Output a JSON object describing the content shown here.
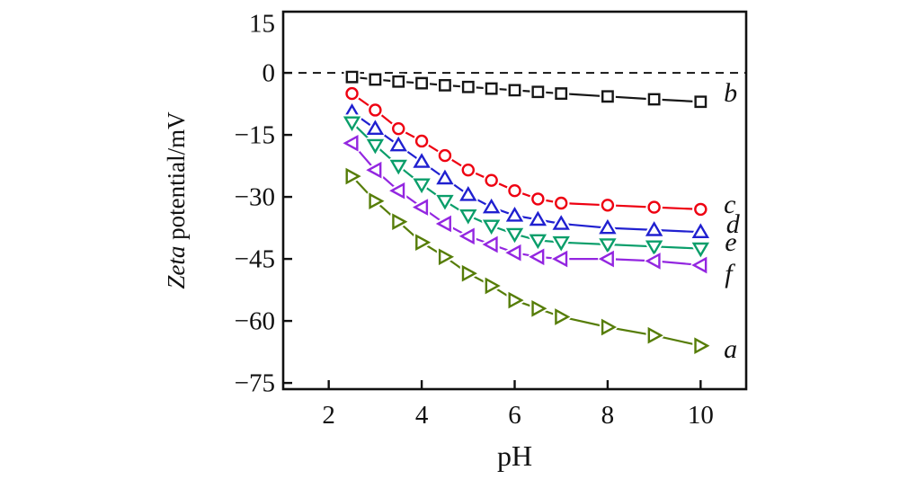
{
  "chart_data": {
    "type": "line",
    "title": "",
    "xlabel": "pH",
    "ylabel": "Zeta potential/mV",
    "ylabel_italic_part": "Zeta",
    "ylabel_regular_part": " potential/mV",
    "xlim": [
      1.02,
      10.98
    ],
    "ylim": [
      -76.5,
      14.8
    ],
    "grid": false,
    "legend_position": "inline-right-labels",
    "axis_color": "#111111",
    "text_color": "#111111",
    "zero_line": {
      "value": 0,
      "style": "dashed",
      "color": "#111111"
    },
    "x_ticks": [
      2,
      4,
      6,
      8,
      10
    ],
    "y_ticks": [
      15,
      0,
      -15,
      -30,
      -45,
      -60,
      -75
    ],
    "x": [
      2.5,
      3,
      3.5,
      4,
      4.5,
      5,
      5.5,
      6,
      6.5,
      7,
      8,
      9,
      10
    ],
    "series": [
      {
        "name": "a",
        "marker": "triangle-right",
        "color": "#567d08",
        "label_x": 10.5,
        "label_y": -66.7,
        "values": [
          -25,
          -31,
          -36,
          -41,
          -44.5,
          -48.5,
          -51.5,
          -55,
          -57,
          -59,
          -61.5,
          -63.5,
          -66
        ]
      },
      {
        "name": "b",
        "marker": "square",
        "color": "#161616",
        "label_x": 10.5,
        "label_y": -4.8,
        "values": [
          -1,
          -1.6,
          -2.1,
          -2.5,
          -3,
          -3.4,
          -3.8,
          -4.2,
          -4.6,
          -5,
          -5.7,
          -6.4,
          -7
        ]
      },
      {
        "name": "c",
        "marker": "circle",
        "color": "#ee0011",
        "label_x": 10.5,
        "label_y": -31.7,
        "values": [
          -5,
          -9,
          -13.5,
          -16.5,
          -20,
          -23.5,
          -26,
          -28.5,
          -30.5,
          -31.5,
          -32,
          -32.5,
          -33
        ]
      },
      {
        "name": "d",
        "marker": "triangle-up",
        "color": "#2020d0",
        "label_x": 10.55,
        "label_y": -36.5,
        "values": [
          -9.5,
          -13.5,
          -17.5,
          -21.5,
          -25.5,
          -29.5,
          -32.5,
          -34.5,
          -35.5,
          -36.5,
          -37.5,
          -38,
          -38.5
        ]
      },
      {
        "name": "e",
        "marker": "triangle-down",
        "color": "#0a9e6a",
        "label_x": 10.52,
        "label_y": -40.9,
        "values": [
          -12,
          -17.5,
          -22.5,
          -27,
          -31,
          -34.5,
          -37,
          -39,
          -40.5,
          -41,
          -41.5,
          -42,
          -42.5
        ]
      },
      {
        "name": "f",
        "marker": "triangle-left",
        "color": "#9326e0",
        "label_x": 10.52,
        "label_y": -48.5,
        "values": [
          -17,
          -23.5,
          -28.5,
          -32.5,
          -36.5,
          -39.5,
          -41.5,
          -43.5,
          -44.5,
          -45,
          -45,
          -45.5,
          -46.5
        ]
      }
    ]
  }
}
